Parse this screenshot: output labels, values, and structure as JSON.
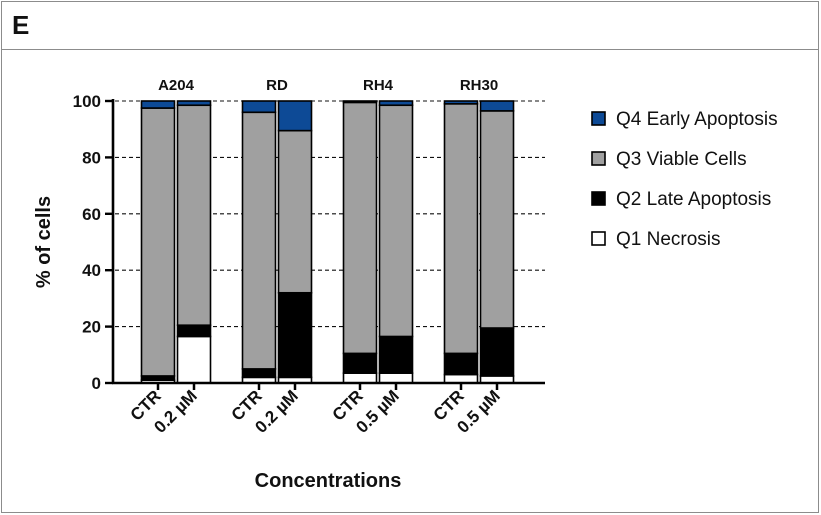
{
  "panel": {
    "label": "E"
  },
  "chart_data": {
    "type": "bar",
    "stacked": true,
    "groups": [
      "A204",
      "RD",
      "RH4",
      "RH30"
    ],
    "categories": [
      "CTR",
      "0.2 µM",
      "CTR",
      "0.2 µM",
      "CTR",
      "0.5 µM",
      "CTR",
      "0.5 µM"
    ],
    "category_group": [
      0,
      0,
      1,
      1,
      2,
      2,
      3,
      3
    ],
    "series": [
      {
        "name": "Q1 Necrosis",
        "color": "#ffffff",
        "values": [
          1,
          16.5,
          2,
          2,
          3.5,
          3.5,
          3,
          2.5
        ]
      },
      {
        "name": "Q2 Late Apoptosis",
        "color": "#000000",
        "values": [
          1.5,
          4,
          3,
          30,
          7,
          13,
          7.5,
          17
        ]
      },
      {
        "name": "Q3 Viable Cells",
        "color": "#a0a0a0",
        "values": [
          95,
          78,
          91,
          57.5,
          89,
          82,
          88.5,
          77
        ]
      },
      {
        "name": "Q4 Early Apoptosis",
        "color": "#0d4a96",
        "values": [
          2.5,
          1.5,
          4,
          10.5,
          0.5,
          1.5,
          1,
          3.5
        ]
      }
    ],
    "legend_order": [
      3,
      2,
      1,
      0
    ],
    "xlabel": "Concentrations",
    "ylabel": "% of cells",
    "ylim": [
      0,
      100
    ],
    "yticks": [
      0,
      20,
      40,
      60,
      80,
      100
    ],
    "grid": "dashed horizontal",
    "legend_position": "right"
  }
}
